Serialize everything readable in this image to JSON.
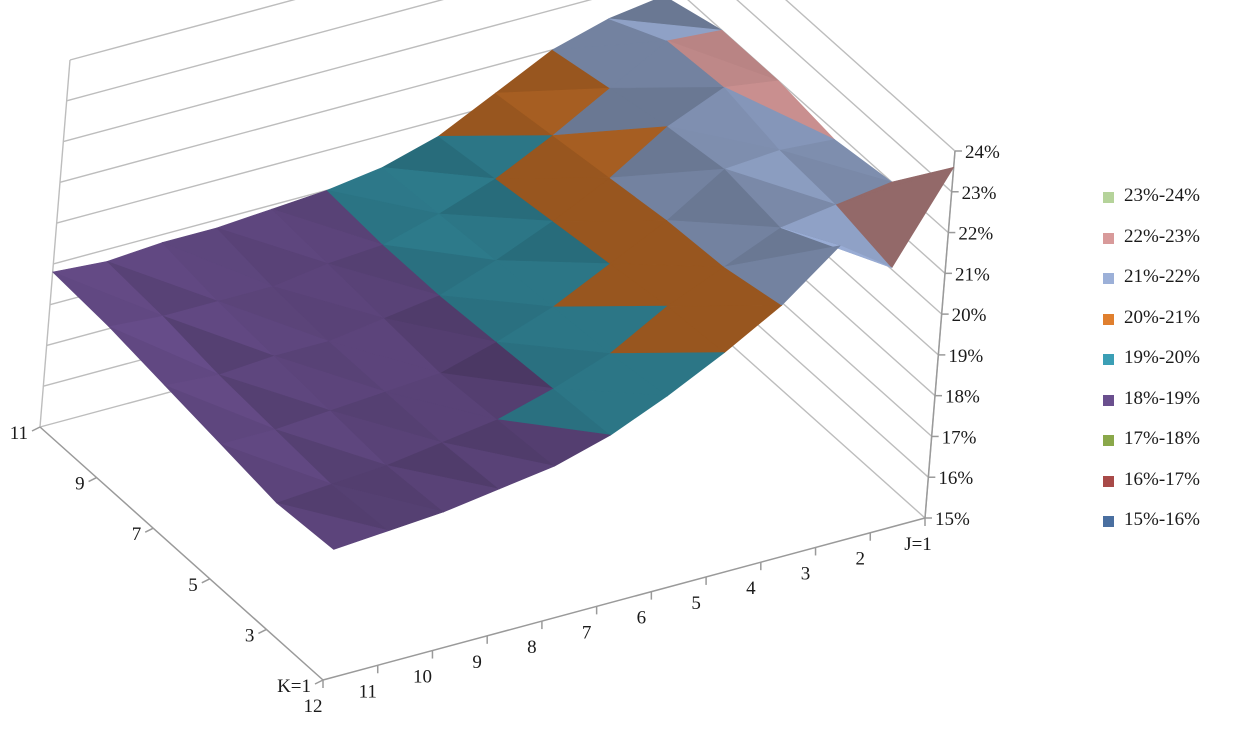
{
  "chart_data": {
    "type": "surface",
    "title": "",
    "z_axis": {
      "ticks": [
        "15%",
        "16%",
        "17%",
        "18%",
        "19%",
        "20%",
        "21%",
        "22%",
        "23%",
        "24%"
      ],
      "range": [
        15,
        24
      ],
      "unit": "%"
    },
    "j_axis": {
      "ticks": [
        "J=1",
        "2",
        "3",
        "4",
        "5",
        "6",
        "7",
        "8",
        "9",
        "10",
        "11",
        "12"
      ]
    },
    "k_axis": {
      "ticks": [
        "K=1",
        "3",
        "5",
        "7",
        "9",
        "11"
      ]
    },
    "legend": {
      "placement": "right",
      "entries": [
        {
          "label": "23%-24%",
          "color": "#b5d39a"
        },
        {
          "label": "22%-23%",
          "color": "#d89a9a"
        },
        {
          "label": "21%-22%",
          "color": "#9cb0d8"
        },
        {
          "label": "20%-21%",
          "color": "#e07f2e"
        },
        {
          "label": "19%-20%",
          "color": "#3b9fb5"
        },
        {
          "label": "18%-19%",
          "color": "#6a4f8e"
        },
        {
          "label": "17%-18%",
          "color": "#8aa84a"
        },
        {
          "label": "16%-17%",
          "color": "#a84a48"
        },
        {
          "label": "15%-16%",
          "color": "#4a6fa0"
        }
      ]
    },
    "surface_rows_k": [
      {
        "k": 1,
        "values": [
          23.6,
          21.5,
          22.4,
          21.3,
          20.5,
          19.8,
          19.2,
          18.8,
          18.6,
          18.4,
          18.3,
          18.2
        ]
      },
      {
        "k": 3,
        "values": [
          22.0,
          21.8,
          21.6,
          21.0,
          20.4,
          19.6,
          19.1,
          18.7,
          18.5,
          18.3,
          18.2,
          18.1
        ]
      },
      {
        "k": 5,
        "values": [
          21.8,
          21.9,
          21.8,
          20.9,
          20.2,
          19.5,
          19.0,
          18.6,
          18.5,
          18.4,
          18.3,
          18.3
        ]
      },
      {
        "k": 7,
        "values": [
          22.0,
          22.2,
          21.6,
          20.7,
          20.0,
          19.4,
          18.9,
          18.7,
          18.5,
          18.5,
          18.4,
          18.5
        ]
      },
      {
        "k": 9,
        "values": [
          22.0,
          22.1,
          21.3,
          20.5,
          19.8,
          19.3,
          18.9,
          18.8,
          18.6,
          18.6,
          18.6,
          18.7
        ]
      },
      {
        "k": 11,
        "values": [
          21.6,
          21.4,
          21.0,
          20.3,
          19.6,
          19.2,
          19.0,
          18.9,
          18.8,
          18.8,
          18.7,
          18.8
        ]
      }
    ]
  }
}
